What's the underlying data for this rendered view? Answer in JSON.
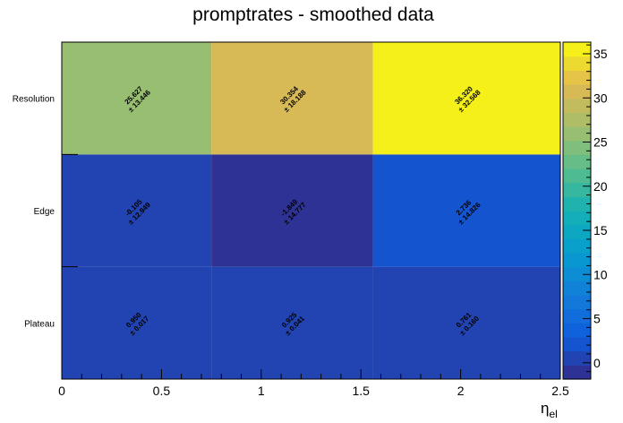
{
  "chart_data": {
    "type": "heatmap",
    "title": "promptrates - smoothed data",
    "xlabel": "η",
    "xlabel_subscript": "el",
    "ylabel": "",
    "x_edges": [
      0,
      0.75,
      1.56,
      2.5
    ],
    "xlim": [
      0,
      2.5
    ],
    "x_ticks": [
      "0",
      "0.5",
      "1",
      "1.5",
      "2",
      "2.5"
    ],
    "y_categories": [
      "Plateau",
      "Edge",
      "Resolution"
    ],
    "values": [
      [
        0.95,
        0.925,
        0.761
      ],
      [
        -0.105,
        -1.849,
        2.736
      ],
      [
        25.627,
        30.354,
        36.32
      ]
    ],
    "errors": [
      [
        0.017,
        0.041,
        0.16
      ],
      [
        12.949,
        14.777,
        14.826
      ],
      [
        13.446,
        18.188,
        32.568
      ]
    ],
    "value_labels": [
      [
        "0.950",
        "0.925",
        "0.761"
      ],
      [
        "-0.105",
        "-1.849",
        "2.736"
      ],
      [
        "25.627",
        "30.354",
        "36.320"
      ]
    ],
    "error_labels": [
      [
        "± 0.017",
        "± 0.041",
        "± 0.160"
      ],
      [
        "± 12.949",
        "± 14.777",
        "± 14.826"
      ],
      [
        "± 13.446",
        "± 18.188",
        "± 32.568"
      ]
    ],
    "zlim": [
      -1.849,
      36.32
    ],
    "z_ticks": [
      "0",
      "5",
      "10",
      "15",
      "20",
      "25",
      "30",
      "35"
    ],
    "colormap": "parula",
    "grid": false,
    "legend": "colorbar-right"
  }
}
